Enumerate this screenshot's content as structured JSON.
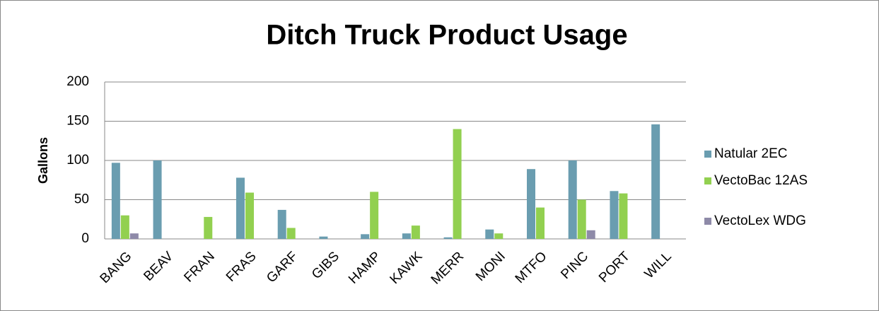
{
  "chart_data": {
    "type": "bar",
    "title": "Ditch Truck Product Usage",
    "y_label": "Gallons",
    "categories": [
      "BANG",
      "BEAV",
      "FRAN",
      "FRAS",
      "GARF",
      "GIBS",
      "HAMP",
      "KAWK",
      "MERR",
      "MONI",
      "MTFO",
      "PINC",
      "PORT",
      "WILL"
    ],
    "series": [
      {
        "name": "Natular 2EC",
        "color": "#6a9db0",
        "values": [
          97,
          100,
          0,
          78,
          37,
          3,
          6,
          7,
          2,
          12,
          89,
          100,
          61,
          146
        ]
      },
      {
        "name": "VectoBac 12AS",
        "color": "#92d050",
        "values": [
          30,
          0,
          28,
          59,
          14,
          0,
          60,
          17,
          140,
          7,
          40,
          50,
          58,
          0
        ]
      },
      {
        "name": "VectoLex WDG",
        "color": "#8e8aa8",
        "values": [
          7,
          0,
          0,
          0,
          0,
          0,
          0,
          0,
          0,
          0,
          0,
          11,
          0,
          0
        ]
      }
    ],
    "ylim": [
      0,
      200
    ],
    "yticks": [
      0,
      50,
      100,
      150,
      200
    ],
    "grid": true,
    "legend": "right"
  }
}
